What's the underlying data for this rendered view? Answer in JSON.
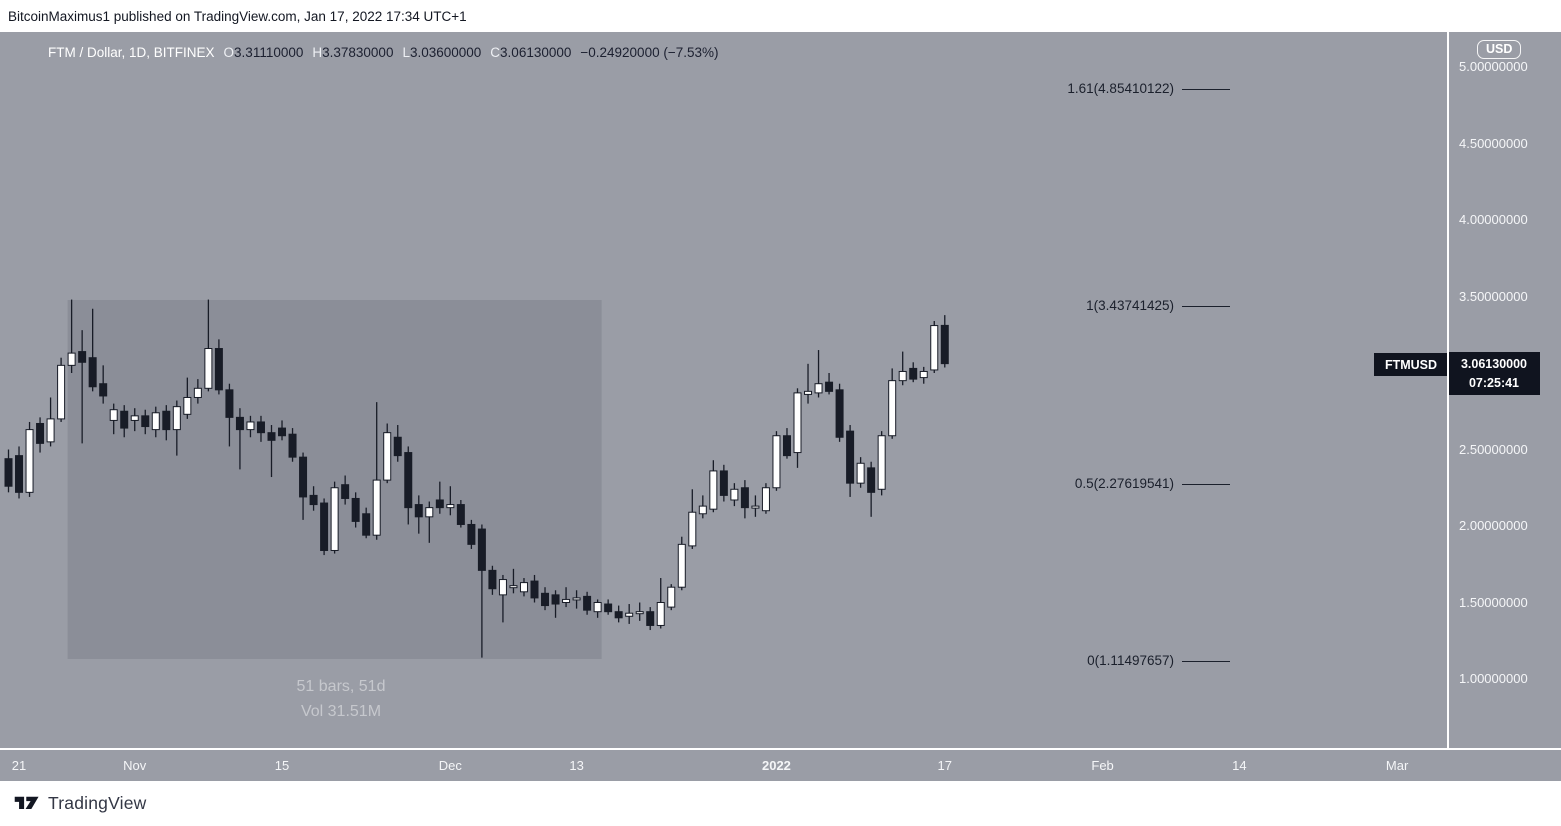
{
  "topbar": {
    "attribution": "BitcoinMaximus1 published on TradingView.com, Jan 17, 2022 17:34 UTC+1"
  },
  "header": {
    "symbol_title": "FTM / Dollar, 1D, BITFINEX",
    "ohlc": [
      {
        "label": "O",
        "value": "3.31110000"
      },
      {
        "label": "H",
        "value": "3.37830000"
      },
      {
        "label": "L",
        "value": "3.03600000"
      },
      {
        "label": "C",
        "value": "3.06130000"
      }
    ],
    "change": "−0.24920000 (−7.53%)"
  },
  "selection": {
    "line1": "51 bars, 51d",
    "line2": "Vol 31.51M"
  },
  "price_label": {
    "symbol": "FTMUSD",
    "price": "3.06130000",
    "countdown": "07:25:41"
  },
  "price_axis": {
    "currency": "USD",
    "ticks": [
      {
        "price": 5.0,
        "label": "5.00000000"
      },
      {
        "price": 4.5,
        "label": "4.50000000"
      },
      {
        "price": 4.0,
        "label": "4.00000000"
      },
      {
        "price": 3.5,
        "label": "3.50000000"
      },
      {
        "price": 2.5,
        "label": "2.50000000"
      },
      {
        "price": 2.0,
        "label": "2.00000000"
      },
      {
        "price": 1.5,
        "label": "1.50000000"
      },
      {
        "price": 1.0,
        "label": "1.00000000"
      }
    ]
  },
  "time_axis": [
    {
      "label": "21",
      "i": 1,
      "bold": false
    },
    {
      "label": "Nov",
      "i": 12,
      "bold": false
    },
    {
      "label": "15",
      "i": 26,
      "bold": false
    },
    {
      "label": "Dec",
      "i": 42,
      "bold": false
    },
    {
      "label": "13",
      "i": 54,
      "bold": false
    },
    {
      "label": "2022",
      "i": 73,
      "bold": true
    },
    {
      "label": "17",
      "i": 89,
      "bold": false
    },
    {
      "label": "Feb",
      "i": 104,
      "bold": false
    },
    {
      "label": "14",
      "i": 117,
      "bold": false
    },
    {
      "label": "Mar",
      "i": 132,
      "bold": false
    }
  ],
  "footer": {
    "brand": "TradingView"
  },
  "colors": {
    "background": "#9a9da6",
    "candle_up": "#ffffff",
    "candle_down": "#181c27",
    "wick": "#181c27",
    "label_bg": "#10141f",
    "axis_text": "#f5f6f8",
    "fib_text": "#1b202c",
    "selection_overlay": "rgba(10,14,30,0.10)"
  },
  "chart_data": {
    "type": "candlestick",
    "title": "FTM / Dollar, 1D, BITFINEX",
    "ylabel": "USD",
    "ylim": [
      0.85,
      5.1
    ],
    "grid": false,
    "layout": {
      "x0": 8.5,
      "dx": 10.52,
      "price_y0": 35,
      "price_scale": 153,
      "top_price": 5.0
    },
    "x_start_date": "2021-10-20",
    "interval": "1D",
    "fib_levels": [
      {
        "label": "1.61(4.85410122)",
        "price": 4.85410122
      },
      {
        "label": "1(3.43741425)",
        "price": 3.43741425
      },
      {
        "label": "0.5(2.27619541)",
        "price": 2.27619541
      },
      {
        "label": "0(1.11497657)",
        "price": 1.11497657
      }
    ],
    "selection_box": {
      "bar_from": 6,
      "bar_to": 56,
      "bars": 51,
      "days": 51,
      "volume": "31.51M"
    },
    "candles": [
      [
        2.44,
        2.5,
        2.22,
        2.26
      ],
      [
        2.46,
        2.52,
        2.18,
        2.22
      ],
      [
        2.22,
        2.68,
        2.19,
        2.63
      ],
      [
        2.67,
        2.71,
        2.48,
        2.54
      ],
      [
        2.55,
        2.84,
        2.52,
        2.7
      ],
      [
        2.7,
        3.1,
        2.68,
        3.05
      ],
      [
        3.05,
        3.48,
        3.0,
        3.13
      ],
      [
        3.14,
        3.28,
        2.54,
        3.07
      ],
      [
        3.1,
        3.42,
        2.88,
        2.91
      ],
      [
        2.93,
        3.05,
        2.8,
        2.85
      ],
      [
        2.69,
        2.8,
        2.6,
        2.76
      ],
      [
        2.75,
        2.79,
        2.58,
        2.64
      ],
      [
        2.69,
        2.77,
        2.62,
        2.72
      ],
      [
        2.72,
        2.76,
        2.6,
        2.65
      ],
      [
        2.63,
        2.78,
        2.58,
        2.74
      ],
      [
        2.75,
        2.79,
        2.56,
        2.63
      ],
      [
        2.63,
        2.82,
        2.46,
        2.78
      ],
      [
        2.73,
        2.97,
        2.7,
        2.84
      ],
      [
        2.84,
        2.96,
        2.8,
        2.9
      ],
      [
        2.9,
        3.48,
        2.88,
        3.16
      ],
      [
        3.16,
        3.22,
        2.86,
        2.89
      ],
      [
        2.89,
        2.93,
        2.52,
        2.71
      ],
      [
        2.71,
        2.77,
        2.37,
        2.63
      ],
      [
        2.63,
        2.72,
        2.58,
        2.68
      ],
      [
        2.68,
        2.72,
        2.55,
        2.61
      ],
      [
        2.61,
        2.66,
        2.32,
        2.56
      ],
      [
        2.64,
        2.69,
        2.56,
        2.59
      ],
      [
        2.6,
        2.64,
        2.42,
        2.45
      ],
      [
        2.45,
        2.48,
        2.04,
        2.19
      ],
      [
        2.2,
        2.26,
        2.1,
        2.14
      ],
      [
        2.15,
        2.18,
        1.81,
        1.84
      ],
      [
        1.84,
        2.29,
        1.82,
        2.25
      ],
      [
        2.27,
        2.33,
        2.14,
        2.18
      ],
      [
        2.18,
        2.22,
        1.99,
        2.03
      ],
      [
        2.08,
        2.12,
        1.92,
        1.94
      ],
      [
        1.94,
        2.81,
        1.91,
        2.3
      ],
      [
        2.3,
        2.67,
        2.28,
        2.61
      ],
      [
        2.58,
        2.66,
        2.42,
        2.46
      ],
      [
        2.48,
        2.52,
        2.01,
        2.12
      ],
      [
        2.14,
        2.2,
        1.95,
        2.06
      ],
      [
        2.06,
        2.16,
        1.89,
        2.12
      ],
      [
        2.17,
        2.29,
        2.08,
        2.12
      ],
      [
        2.12,
        2.26,
        2.07,
        2.14
      ],
      [
        2.14,
        2.17,
        1.99,
        2.01
      ],
      [
        2.01,
        2.04,
        1.85,
        1.88
      ],
      [
        1.98,
        2.01,
        1.14,
        1.71
      ],
      [
        1.71,
        1.74,
        1.55,
        1.59
      ],
      [
        1.55,
        1.68,
        1.37,
        1.65
      ],
      [
        1.6,
        1.72,
        1.56,
        1.61
      ],
      [
        1.57,
        1.66,
        1.54,
        1.63
      ],
      [
        1.64,
        1.68,
        1.5,
        1.53
      ],
      [
        1.56,
        1.6,
        1.45,
        1.48
      ],
      [
        1.55,
        1.58,
        1.4,
        1.49
      ],
      [
        1.5,
        1.6,
        1.47,
        1.52
      ],
      [
        1.52,
        1.58,
        1.46,
        1.53
      ],
      [
        1.54,
        1.57,
        1.42,
        1.45
      ],
      [
        1.44,
        1.52,
        1.4,
        1.5
      ],
      [
        1.49,
        1.52,
        1.42,
        1.44
      ],
      [
        1.44,
        1.48,
        1.37,
        1.4
      ],
      [
        1.41,
        1.49,
        1.36,
        1.43
      ],
      [
        1.43,
        1.5,
        1.38,
        1.44
      ],
      [
        1.44,
        1.47,
        1.32,
        1.35
      ],
      [
        1.35,
        1.66,
        1.33,
        1.5
      ],
      [
        1.47,
        1.62,
        1.45,
        1.6
      ],
      [
        1.6,
        1.93,
        1.58,
        1.88
      ],
      [
        1.87,
        2.24,
        1.85,
        2.09
      ],
      [
        2.08,
        2.2,
        2.05,
        2.13
      ],
      [
        2.11,
        2.43,
        2.09,
        2.36
      ],
      [
        2.36,
        2.4,
        2.16,
        2.2
      ],
      [
        2.17,
        2.28,
        2.13,
        2.24
      ],
      [
        2.25,
        2.3,
        2.05,
        2.12
      ],
      [
        2.12,
        2.2,
        2.06,
        2.13
      ],
      [
        2.1,
        2.28,
        2.08,
        2.25
      ],
      [
        2.25,
        2.62,
        2.23,
        2.59
      ],
      [
        2.59,
        2.64,
        2.44,
        2.46
      ],
      [
        2.48,
        2.9,
        2.38,
        2.87
      ],
      [
        2.86,
        3.06,
        2.8,
        2.88
      ],
      [
        2.87,
        3.15,
        2.84,
        2.93
      ],
      [
        2.94,
        3.0,
        2.86,
        2.88
      ],
      [
        2.89,
        2.93,
        2.55,
        2.58
      ],
      [
        2.62,
        2.66,
        2.19,
        2.28
      ],
      [
        2.28,
        2.45,
        2.25,
        2.41
      ],
      [
        2.38,
        2.42,
        2.06,
        2.22
      ],
      [
        2.24,
        2.62,
        2.2,
        2.59
      ],
      [
        2.59,
        3.03,
        2.57,
        2.95
      ],
      [
        2.95,
        3.14,
        2.92,
        3.01
      ],
      [
        3.03,
        3.07,
        2.94,
        2.96
      ],
      [
        2.97,
        3.04,
        2.93,
        3.01
      ],
      [
        3.02,
        3.34,
        3.0,
        3.31
      ],
      [
        3.3111,
        3.3783,
        3.036,
        3.0613
      ]
    ]
  }
}
